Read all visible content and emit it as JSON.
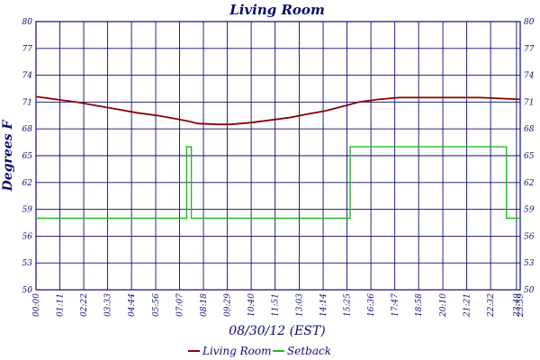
{
  "chart_data": {
    "type": "line",
    "title": "Living Room",
    "xlabel": "08/30/12 (EST)",
    "ylabel": "Degrees F",
    "ylim": [
      50,
      80
    ],
    "yticks": [
      50,
      53,
      56,
      59,
      62,
      65,
      68,
      71,
      74,
      77,
      80
    ],
    "xlim": [
      0,
      1440
    ],
    "xtick_minutes": [
      0,
      71,
      142,
      213,
      284,
      356,
      427,
      498,
      569,
      640,
      711,
      783,
      854,
      925,
      996,
      1067,
      1138,
      1210,
      1281,
      1352,
      1429,
      1440
    ],
    "xtick_labels": [
      "00:00",
      "01:11",
      "02:22",
      "03:33",
      "04:44",
      "05:56",
      "07:07",
      "08:18",
      "09:29",
      "10:40",
      "11:51",
      "13:03",
      "14:14",
      "15:25",
      "16:36",
      "17:47",
      "18:58",
      "20:10",
      "21:21",
      "22:32",
      "23:49",
      "23:59"
    ],
    "grid": true,
    "legend_position": "bottom",
    "series": [
      {
        "name": "Living Room",
        "color": "#8b0000",
        "style": "line",
        "x": [
          0,
          60,
          120,
          180,
          240,
          300,
          360,
          420,
          460,
          480,
          540,
          580,
          640,
          700,
          760,
          800,
          860,
          900,
          960,
          1020,
          1080,
          1140,
          1200,
          1260,
          1320,
          1380,
          1440
        ],
        "y": [
          71.6,
          71.3,
          71.0,
          70.6,
          70.2,
          69.8,
          69.5,
          69.1,
          68.8,
          68.6,
          68.5,
          68.5,
          68.7,
          69.0,
          69.3,
          69.6,
          70.0,
          70.4,
          71.0,
          71.3,
          71.5,
          71.5,
          71.5,
          71.5,
          71.5,
          71.4,
          71.3
        ]
      },
      {
        "name": "Setback",
        "color": "#22bb22",
        "style": "step",
        "x": [
          0,
          448,
          448,
          462,
          462,
          934,
          934,
          1399,
          1399,
          1440
        ],
        "y": [
          58,
          58,
          66,
          66,
          58,
          58,
          66,
          66,
          58,
          58
        ]
      }
    ]
  }
}
